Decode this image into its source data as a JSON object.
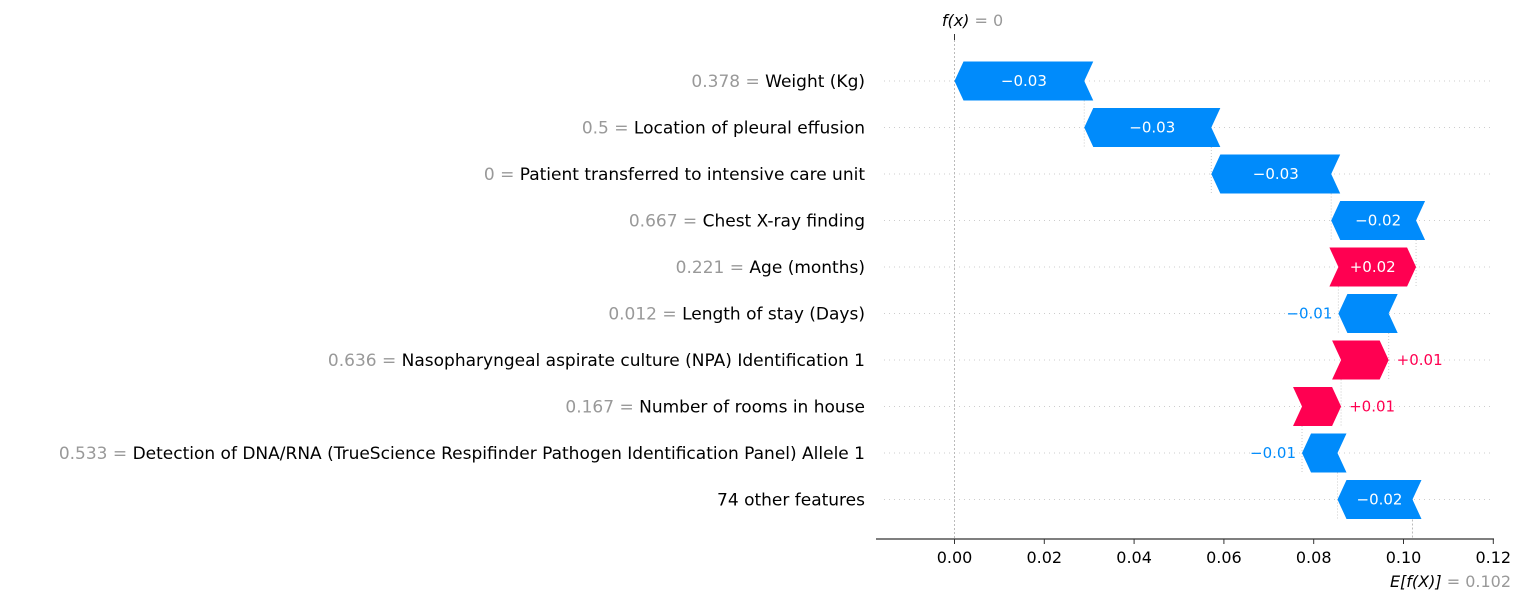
{
  "chart_data": {
    "type": "waterfall",
    "colors": {
      "negative": "#008BFB",
      "positive": "#FF0051",
      "value_text": "#999999"
    },
    "features": [
      {
        "value": "0.378",
        "name": "Weight (Kg)",
        "shap": -0.0289,
        "label": "−0.03"
      },
      {
        "value": "0.5",
        "name": "Location of pleural effusion",
        "shap": -0.0283,
        "label": "−0.03"
      },
      {
        "value": "0",
        "name": "Patient transferred to intensive care unit",
        "shap": -0.0267,
        "label": "−0.03"
      },
      {
        "value": "0.667",
        "name": "Chest X-ray finding",
        "shap": -0.0189,
        "label": "−0.02"
      },
      {
        "value": "0.221",
        "name": "Age (months)",
        "shap": 0.0173,
        "label": "+0.02"
      },
      {
        "value": "0.012",
        "name": "Length of stay (Days)",
        "shap": -0.0112,
        "label": "−0.01"
      },
      {
        "value": "0.636",
        "name": "Nasopharyngeal aspirate culture (NPA) Identification 1",
        "shap": 0.0106,
        "label": "+0.01"
      },
      {
        "value": "0.167",
        "name": "Number of rooms in house",
        "shap": 0.0087,
        "label": "+0.01"
      },
      {
        "value": "0.533",
        "name": "Detection of DNA/RNA (TrueScience Respifinder Pathogen Identification Panel) Allele 1",
        "shap": -0.0079,
        "label": "−0.01"
      },
      {
        "value": "",
        "name": "74 other features",
        "shap": -0.0167,
        "label": "−0.02"
      }
    ],
    "fx": {
      "label_var": "f(x)",
      "label_eq": " = ",
      "value": "0",
      "numeric": 0
    },
    "base": {
      "label_var": "E[f(X)]",
      "label_eq": " = ",
      "value": "0.102",
      "numeric": 0.102
    },
    "xlim": [
      -0.0175,
      0.12
    ],
    "ticks": [
      0.0,
      0.02,
      0.04,
      0.06,
      0.08,
      0.1,
      0.12
    ],
    "tick_labels": [
      "0.00",
      "0.02",
      "0.04",
      "0.06",
      "0.08",
      "0.10",
      "0.12"
    ]
  }
}
